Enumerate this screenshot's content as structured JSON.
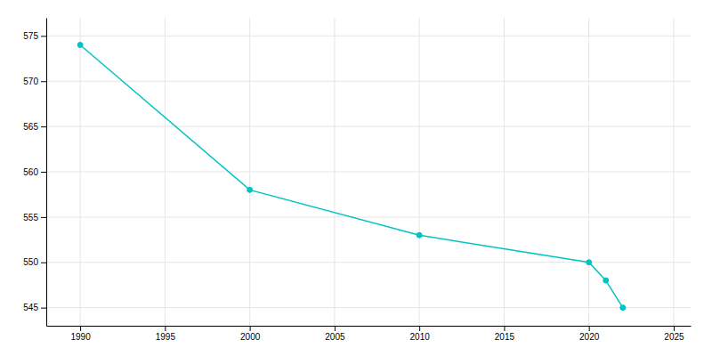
{
  "chart_data": {
    "type": "line",
    "x": [
      1990,
      2000,
      2010,
      2020,
      2021,
      2022
    ],
    "values": [
      574,
      558,
      553,
      550,
      548,
      545
    ],
    "color": "#00C4C4",
    "marker": "circle",
    "xlim": [
      1988,
      2026
    ],
    "ylim": [
      543,
      577
    ],
    "xticks": [
      1990,
      1995,
      2000,
      2005,
      2010,
      2015,
      2020,
      2025
    ],
    "yticks": [
      545,
      550,
      555,
      560,
      565,
      570,
      575
    ],
    "grid": true
  }
}
